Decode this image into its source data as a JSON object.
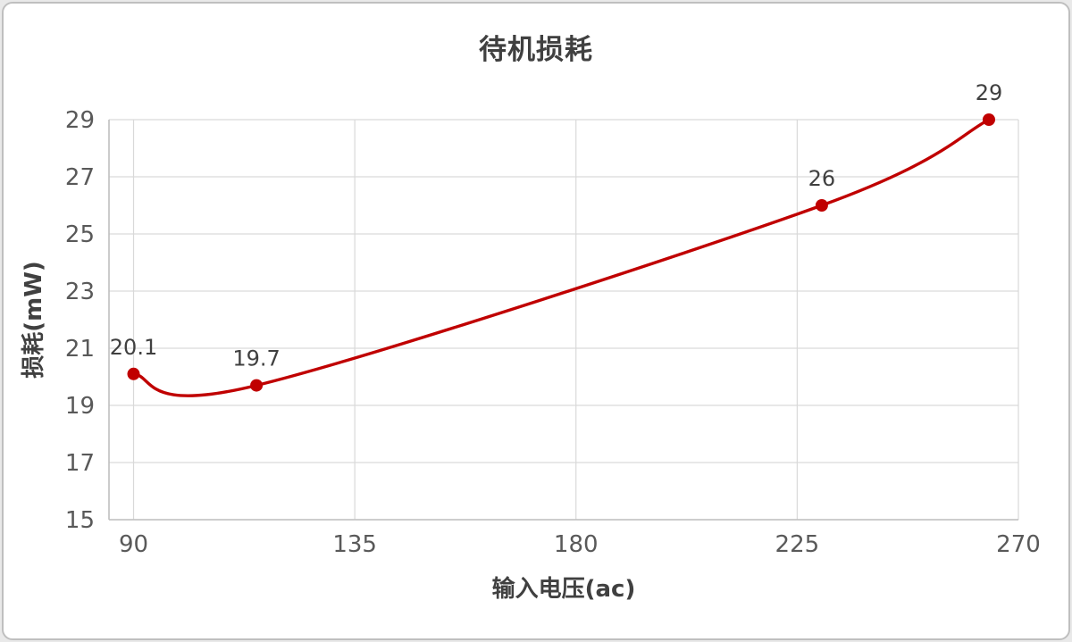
{
  "frame": {
    "background": "#ffffff",
    "border_color": "#bfbfbf"
  },
  "chart_data": {
    "type": "line",
    "title": "待机损耗",
    "xlabel": "输入电压(ac)",
    "ylabel": "损耗(mW)",
    "x": [
      90,
      115,
      230,
      264
    ],
    "y": [
      20.1,
      19.7,
      26,
      29
    ],
    "point_labels": [
      "20.1",
      "19.7",
      "26",
      "29"
    ],
    "x_ticks": [
      90,
      135,
      180,
      225,
      270
    ],
    "y_ticks": [
      15,
      17,
      19,
      21,
      23,
      25,
      27,
      29
    ],
    "xlim": [
      85,
      270
    ],
    "ylim": [
      15,
      29
    ],
    "line_color": "#c00000",
    "marker_color": "#c00000",
    "gridline_color": "#d9d9d9",
    "axis_line_color": "#bfbfbf",
    "smooth": true,
    "grid": true,
    "legend_position": "none"
  }
}
